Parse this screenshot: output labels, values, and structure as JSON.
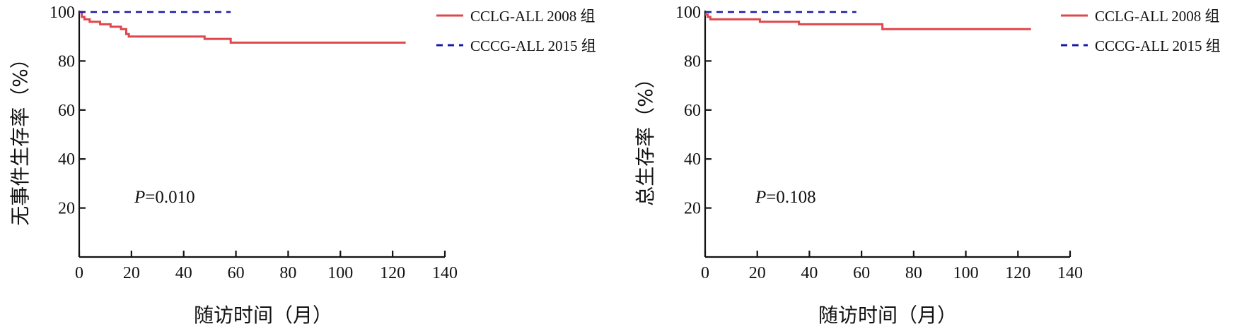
{
  "chart_data": [
    {
      "type": "line",
      "title": "",
      "xlabel": "随访时间（月）",
      "ylabel": "无事件生存率（%）",
      "xlim": [
        0,
        140
      ],
      "ylim": [
        0,
        100
      ],
      "xticks": [
        "0",
        "20",
        "40",
        "60",
        "80",
        "100",
        "120",
        "140"
      ],
      "yticks": [
        "20",
        "40",
        "60",
        "80",
        "100"
      ],
      "annotation": {
        "italic": "P",
        "text": "=0.010"
      },
      "legend_position": "top-right",
      "series": [
        {
          "name": "CCLG-ALL 2008 组",
          "color": "#e0474c",
          "style": "solid",
          "step": true,
          "points": [
            [
              0,
              100
            ],
            [
              1,
              98
            ],
            [
              2,
              97
            ],
            [
              4,
              96
            ],
            [
              8,
              95
            ],
            [
              12,
              94
            ],
            [
              16,
              93
            ],
            [
              18,
              91
            ],
            [
              19,
              90
            ],
            [
              47,
              90
            ],
            [
              48,
              89
            ],
            [
              58,
              89
            ],
            [
              58,
              87.5
            ],
            [
              125,
              87.5
            ]
          ]
        },
        {
          "name": "CCCG-ALL 2015 组",
          "color": "#1a1aa8",
          "style": "dashed",
          "step": true,
          "points": [
            [
              0,
              100
            ],
            [
              58,
              100
            ]
          ]
        }
      ]
    },
    {
      "type": "line",
      "title": "",
      "xlabel": "随访时间（月）",
      "ylabel": "总生存率（%）",
      "xlim": [
        0,
        140
      ],
      "ylim": [
        0,
        100
      ],
      "xticks": [
        "0",
        "20",
        "40",
        "60",
        "80",
        "100",
        "120",
        "140"
      ],
      "yticks": [
        "20",
        "40",
        "60",
        "80",
        "100"
      ],
      "annotation": {
        "italic": "P",
        "text": "=0.108"
      },
      "legend_position": "top-right",
      "series": [
        {
          "name": "CCLG-ALL 2008 组",
          "color": "#e0474c",
          "style": "solid",
          "step": true,
          "points": [
            [
              0,
              99
            ],
            [
              1,
              98
            ],
            [
              2,
              97
            ],
            [
              20,
              97
            ],
            [
              21,
              96
            ],
            [
              35,
              96
            ],
            [
              36,
              95
            ],
            [
              67,
              95
            ],
            [
              68,
              93
            ],
            [
              125,
              93
            ]
          ]
        },
        {
          "name": "CCCG-ALL 2015 组",
          "color": "#1a1aa8",
          "style": "dashed",
          "step": true,
          "points": [
            [
              0,
              100
            ],
            [
              58,
              100
            ]
          ]
        }
      ]
    }
  ]
}
